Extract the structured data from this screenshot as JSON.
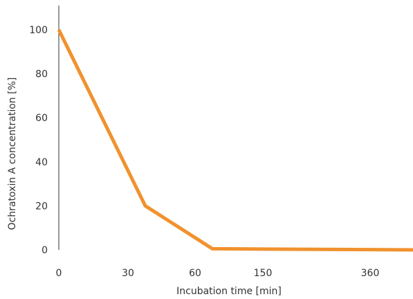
{
  "chart_data": {
    "type": "line",
    "title": "",
    "xlabel": "Incubation time [min]",
    "ylabel": "Ochratoxin A concentration [%]",
    "x_ticks": [
      "0",
      "30",
      "60",
      "150",
      "360"
    ],
    "y_ticks": [
      "0",
      "20",
      "40",
      "60",
      "80",
      "100"
    ],
    "ylim": [
      0,
      100
    ],
    "grid": false,
    "series": [
      {
        "color": "#f0922e",
        "points": [
          {
            "x": "0",
            "y": 100
          },
          {
            "x": "45",
            "y": 20
          },
          {
            "x": "90",
            "y": 0.5
          },
          {
            "x": "480",
            "y": 0
          }
        ]
      }
    ]
  }
}
